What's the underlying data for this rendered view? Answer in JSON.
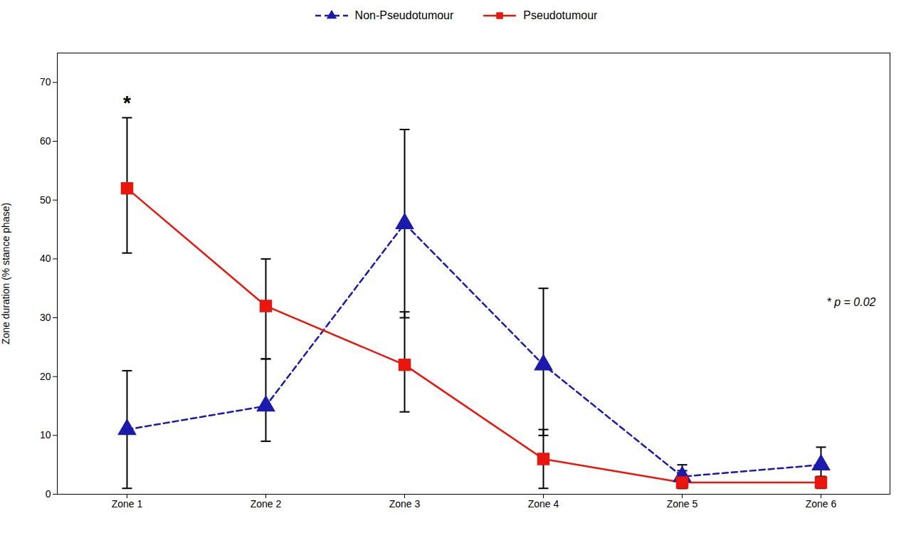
{
  "chart_data": {
    "type": "line",
    "categories": [
      "Zone 1",
      "Zone 2",
      "Zone 3",
      "Zone 4",
      "Zone 5",
      "Zone 6"
    ],
    "ylabel": "Zone duration (% stance phase)",
    "ylim": [
      0,
      75
    ],
    "yticks": [
      0,
      10,
      20,
      30,
      40,
      50,
      60,
      70
    ],
    "grid": false,
    "legend": "top",
    "annotations": [
      "*",
      "* p = 0.02"
    ],
    "series": [
      {
        "name": "Non-Pseudotumour",
        "color": "#1a1aad",
        "marker": "triangle",
        "line_style": "dashed",
        "values": [
          11,
          15,
          46,
          22,
          3,
          5
        ],
        "error_lower": [
          10,
          6,
          16,
          12,
          2,
          2
        ],
        "error_upper": [
          10,
          8,
          16,
          13,
          2,
          3
        ]
      },
      {
        "name": "Pseudotumour",
        "color": "#e8160c",
        "marker": "square",
        "line_style": "solid",
        "values": [
          52,
          32,
          22,
          6,
          2,
          2
        ],
        "error_lower": [
          11,
          9,
          8,
          5,
          1,
          1
        ],
        "error_upper": [
          12,
          8,
          9,
          5,
          2,
          1
        ]
      }
    ]
  }
}
